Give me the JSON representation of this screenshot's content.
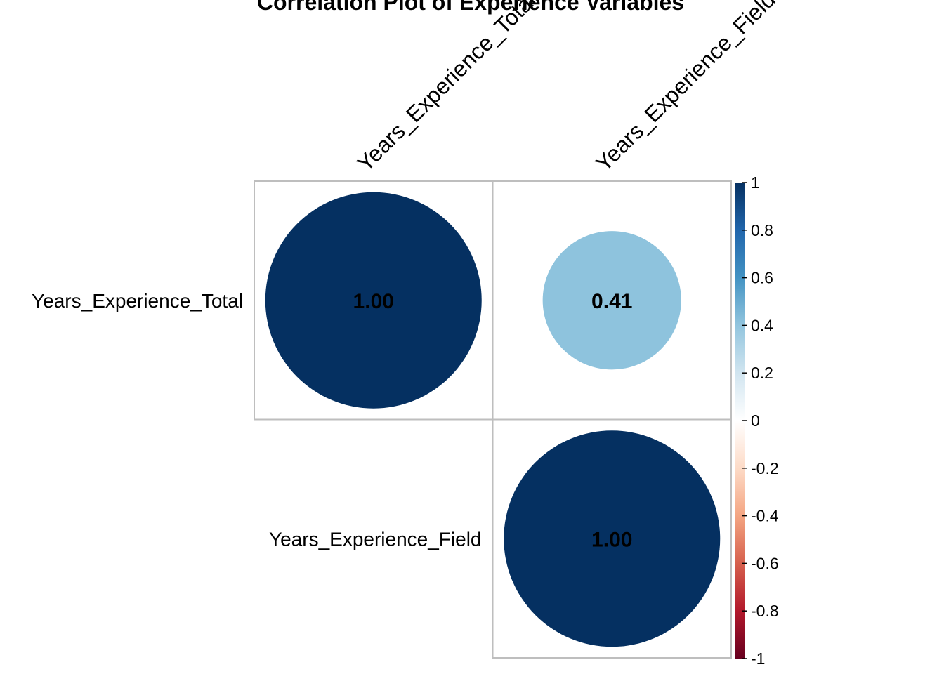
{
  "chart_data": {
    "type": "heatmap",
    "subtype": "corrplot-upper-circle",
    "title": "Correlation Plot of Experience Variables",
    "variables": [
      "Years_Experience_Total",
      "Years_Experience_Field"
    ],
    "matrix": [
      [
        1.0,
        0.41
      ],
      [
        null,
        1.0
      ]
    ],
    "cells": [
      {
        "row": 0,
        "col": 0,
        "value": 1.0,
        "label": "1.00"
      },
      {
        "row": 0,
        "col": 1,
        "value": 0.41,
        "label": "0.41"
      },
      {
        "row": 1,
        "col": 1,
        "value": 1.0,
        "label": "1.00"
      }
    ],
    "legend": {
      "range": [
        -1,
        1
      ],
      "ticks": [
        {
          "value": 1,
          "label": "1"
        },
        {
          "value": 0.8,
          "label": "0.8"
        },
        {
          "value": 0.6,
          "label": "0.6"
        },
        {
          "value": 0.4,
          "label": "0.4"
        },
        {
          "value": 0.2,
          "label": "0.2"
        },
        {
          "value": 0,
          "label": "0"
        },
        {
          "value": -0.2,
          "label": "-0.2"
        },
        {
          "value": -0.4,
          "label": "-0.4"
        },
        {
          "value": -0.6,
          "label": "-0.6"
        },
        {
          "value": -0.8,
          "label": "-0.8"
        },
        {
          "value": -1,
          "label": "-1"
        }
      ],
      "placement": "right"
    },
    "colors": {
      "scale": [
        "#67001F",
        "#B2182B",
        "#D6604D",
        "#F4A582",
        "#FDDBC7",
        "#FFFFFF",
        "#D1E5F0",
        "#92C5DE",
        "#4393C3",
        "#2166AC",
        "#053061"
      ],
      "grid": "#BEBEBE",
      "value_text": "#000000"
    }
  }
}
